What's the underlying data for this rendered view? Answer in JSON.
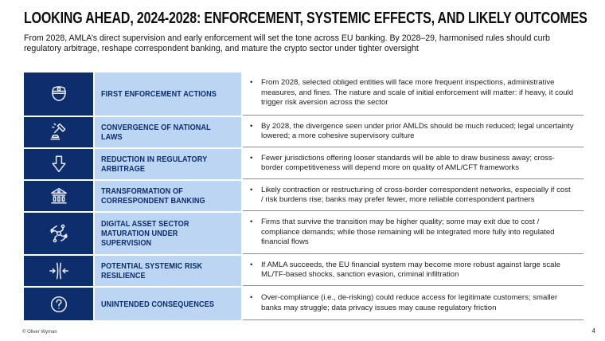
{
  "slide": {
    "title": "LOOKING AHEAD, 2024-2028: ENFORCEMENT, SYSTEMIC EFFECTS, AND LIKELY OUTCOMES",
    "subtitle": "From 2028, AMLA’s direct supervision and early enforcement will set the tone across EU banking. By 2028–29, harmonised rules should curb regulatory arbitrage, reshape correspondent banking, and mature the crypto sector under tighter oversight",
    "footer_left": "© Oliver Wyman",
    "page_number": "4"
  },
  "colors": {
    "navy": "#0d2d6c",
    "light_blue": "#bcd5f3",
    "divider": "#8c8c8c",
    "body_text": "#1d1d1d"
  },
  "table": {
    "rows": [
      {
        "icon": "police-cap-icon",
        "label": "FIRST ENFORCEMENT ACTIONS",
        "bullets": [
          "From 2028, selected obliged entities will face more frequent inspections, administrative measures, and fines. The nature and scale of initial enforcement will matter: if heavy, it could trigger risk aversion across the sector"
        ]
      },
      {
        "icon": "gavel-icon",
        "label": "CONVERGENCE OF NATIONAL LAWS",
        "bullets": [
          "By 2028, the divergence seen under prior AMLDs should be much reduced; legal uncertainty lowered; a more cohesive supervisory culture"
        ]
      },
      {
        "icon": "down-arrow-icon",
        "label": "REDUCTION IN REGULATORY ARBITRAGE",
        "bullets": [
          "Fewer jurisdictions offering looser standards will be able to draw business away; cross-border competitiveness will depend more on quality of AML/CFT frameworks"
        ]
      },
      {
        "icon": "bank-icon",
        "label": "TRANSFORMATION OF CORRESPONDENT BANKING",
        "bullets": [
          "Likely contraction or restructuring of cross-border correspondent networks, especially if cost / risk burdens rise; banks may prefer fewer, more reliable correspondent partners"
        ]
      },
      {
        "icon": "digital-circuit-icon",
        "label": "DIGITAL ASSET SECTOR MATURATION UNDER SUPERVISION",
        "bullets": [
          "Firms that survive the transition may be higher quality; some may exit due to cost / compliance demands; while those remaining will be integrated more fully into regulated financial flows"
        ]
      },
      {
        "icon": "converging-arrows-icon",
        "label": "POTENTIAL SYSTEMIC RISK RESILIENCE",
        "bullets": [
          "If AMLA succeeds, the EU financial system may become more robust against large scale ML/TF-based shocks, sanction evasion, criminal infiltration"
        ]
      },
      {
        "icon": "question-circle-icon",
        "label": "UNINTENDED CONSEQUENCES",
        "bullets": [
          "Over-compliance (i.e., de-risking) could reduce access for legitimate customers; smaller banks may struggle; data privacy issues may cause regulatory friction"
        ]
      }
    ]
  }
}
